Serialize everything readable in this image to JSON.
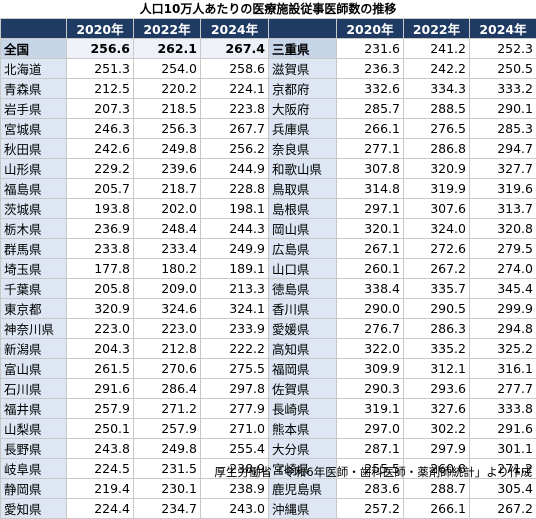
{
  "title": "人口10万人あたりの医療施設従事医師数の推移",
  "headers": [
    "",
    "2020年",
    "2022年",
    "2024年",
    "",
    "2020年",
    "2022年",
    "2024年"
  ],
  "left_rows": [
    {
      "pref": "全国",
      "v2020": "256.6",
      "v2022": "262.1",
      "v2024": "267.4"
    },
    {
      "pref": "北海道",
      "v2020": "251.3",
      "v2022": "254.0",
      "v2024": "258.6"
    },
    {
      "pref": "青森県",
      "v2020": "212.5",
      "v2022": "220.2",
      "v2024": "224.1"
    },
    {
      "pref": "岩手県",
      "v2020": "207.3",
      "v2022": "218.5",
      "v2024": "223.8"
    },
    {
      "pref": "宮城県",
      "v2020": "246.3",
      "v2022": "256.3",
      "v2024": "267.7"
    },
    {
      "pref": "秋田県",
      "v2020": "242.6",
      "v2022": "249.8",
      "v2024": "256.2"
    },
    {
      "pref": "山形県",
      "v2020": "229.2",
      "v2022": "239.6",
      "v2024": "244.9"
    },
    {
      "pref": "福島県",
      "v2020": "205.7",
      "v2022": "218.7",
      "v2024": "228.8"
    },
    {
      "pref": "茨城県",
      "v2020": "193.8",
      "v2022": "202.0",
      "v2024": "198.1"
    },
    {
      "pref": "栃木県",
      "v2020": "236.9",
      "v2022": "248.4",
      "v2024": "244.3"
    },
    {
      "pref": "群馬県",
      "v2020": "233.8",
      "v2022": "233.4",
      "v2024": "249.9"
    },
    {
      "pref": "埼玉県",
      "v2020": "177.8",
      "v2022": "180.2",
      "v2024": "189.1"
    },
    {
      "pref": "千葉県",
      "v2020": "205.8",
      "v2022": "209.0",
      "v2024": "213.3"
    },
    {
      "pref": "東京都",
      "v2020": "320.9",
      "v2022": "324.6",
      "v2024": "324.1"
    },
    {
      "pref": "神奈川県",
      "v2020": "223.0",
      "v2022": "223.0",
      "v2024": "233.9"
    },
    {
      "pref": "新潟県",
      "v2020": "204.3",
      "v2022": "212.8",
      "v2024": "222.2"
    },
    {
      "pref": "富山県",
      "v2020": "261.5",
      "v2022": "270.6",
      "v2024": "275.5"
    },
    {
      "pref": "石川県",
      "v2020": "291.6",
      "v2022": "286.4",
      "v2024": "297.8"
    },
    {
      "pref": "福井県",
      "v2020": "257.9",
      "v2022": "271.2",
      "v2024": "277.9"
    },
    {
      "pref": "山梨県",
      "v2020": "250.1",
      "v2022": "257.9",
      "v2024": "271.0"
    },
    {
      "pref": "長野県",
      "v2020": "243.8",
      "v2022": "249.8",
      "v2024": "255.4"
    },
    {
      "pref": "岐阜県",
      "v2020": "224.5",
      "v2022": "231.5",
      "v2024": "238.9"
    },
    {
      "pref": "静岡県",
      "v2020": "219.4",
      "v2022": "230.1",
      "v2024": "238.9"
    },
    {
      "pref": "愛知県",
      "v2020": "224.4",
      "v2022": "234.7",
      "v2024": "243.0"
    }
  ],
  "right_rows": [
    {
      "pref": "三重県",
      "v2020": "231.6",
      "v2022": "241.2",
      "v2024": "252.3"
    },
    {
      "pref": "滋賀県",
      "v2020": "236.3",
      "v2022": "242.2",
      "v2024": "250.5"
    },
    {
      "pref": "京都府",
      "v2020": "332.6",
      "v2022": "334.3",
      "v2024": "333.2"
    },
    {
      "pref": "大阪府",
      "v2020": "285.7",
      "v2022": "288.5",
      "v2024": "290.1"
    },
    {
      "pref": "兵庫県",
      "v2020": "266.1",
      "v2022": "276.5",
      "v2024": "285.3"
    },
    {
      "pref": "奈良県",
      "v2020": "277.1",
      "v2022": "286.8",
      "v2024": "294.7"
    },
    {
      "pref": "和歌山県",
      "v2020": "307.8",
      "v2022": "320.9",
      "v2024": "327.7"
    },
    {
      "pref": "鳥取県",
      "v2020": "314.8",
      "v2022": "319.9",
      "v2024": "319.6"
    },
    {
      "pref": "島根県",
      "v2020": "297.1",
      "v2022": "307.6",
      "v2024": "313.7"
    },
    {
      "pref": "岡山県",
      "v2020": "320.1",
      "v2022": "324.0",
      "v2024": "320.8"
    },
    {
      "pref": "広島県",
      "v2020": "267.1",
      "v2022": "272.6",
      "v2024": "279.5"
    },
    {
      "pref": "山口県",
      "v2020": "260.1",
      "v2022": "267.2",
      "v2024": "274.0"
    },
    {
      "pref": "徳島県",
      "v2020": "338.4",
      "v2022": "335.7",
      "v2024": "345.4"
    },
    {
      "pref": "香川県",
      "v2020": "290.0",
      "v2022": "290.5",
      "v2024": "299.9"
    },
    {
      "pref": "愛媛県",
      "v2020": "276.7",
      "v2022": "286.3",
      "v2024": "294.8"
    },
    {
      "pref": "高知県",
      "v2020": "322.0",
      "v2022": "335.2",
      "v2024": "325.2"
    },
    {
      "pref": "福岡県",
      "v2020": "309.9",
      "v2022": "312.1",
      "v2024": "316.1"
    },
    {
      "pref": "佐賀県",
      "v2020": "290.3",
      "v2022": "293.6",
      "v2024": "277.7"
    },
    {
      "pref": "長崎県",
      "v2020": "319.1",
      "v2022": "327.6",
      "v2024": "333.8"
    },
    {
      "pref": "熊本県",
      "v2020": "297.0",
      "v2022": "302.2",
      "v2024": "291.6"
    },
    {
      "pref": "大分県",
      "v2020": "287.1",
      "v2022": "297.9",
      "v2024": "301.1"
    },
    {
      "pref": "宮崎県",
      "v2020": "255.5",
      "v2022": "260.8",
      "v2024": "271.2"
    },
    {
      "pref": "鹿児島県",
      "v2020": "283.6",
      "v2022": "288.7",
      "v2024": "305.4"
    },
    {
      "pref": "沖縄県",
      "v2020": "257.2",
      "v2022": "266.1",
      "v2024": "267.2"
    }
  ],
  "footer": "厚生労働省「令和6年医師・歯科医師・薬剤師統計」より作成"
}
